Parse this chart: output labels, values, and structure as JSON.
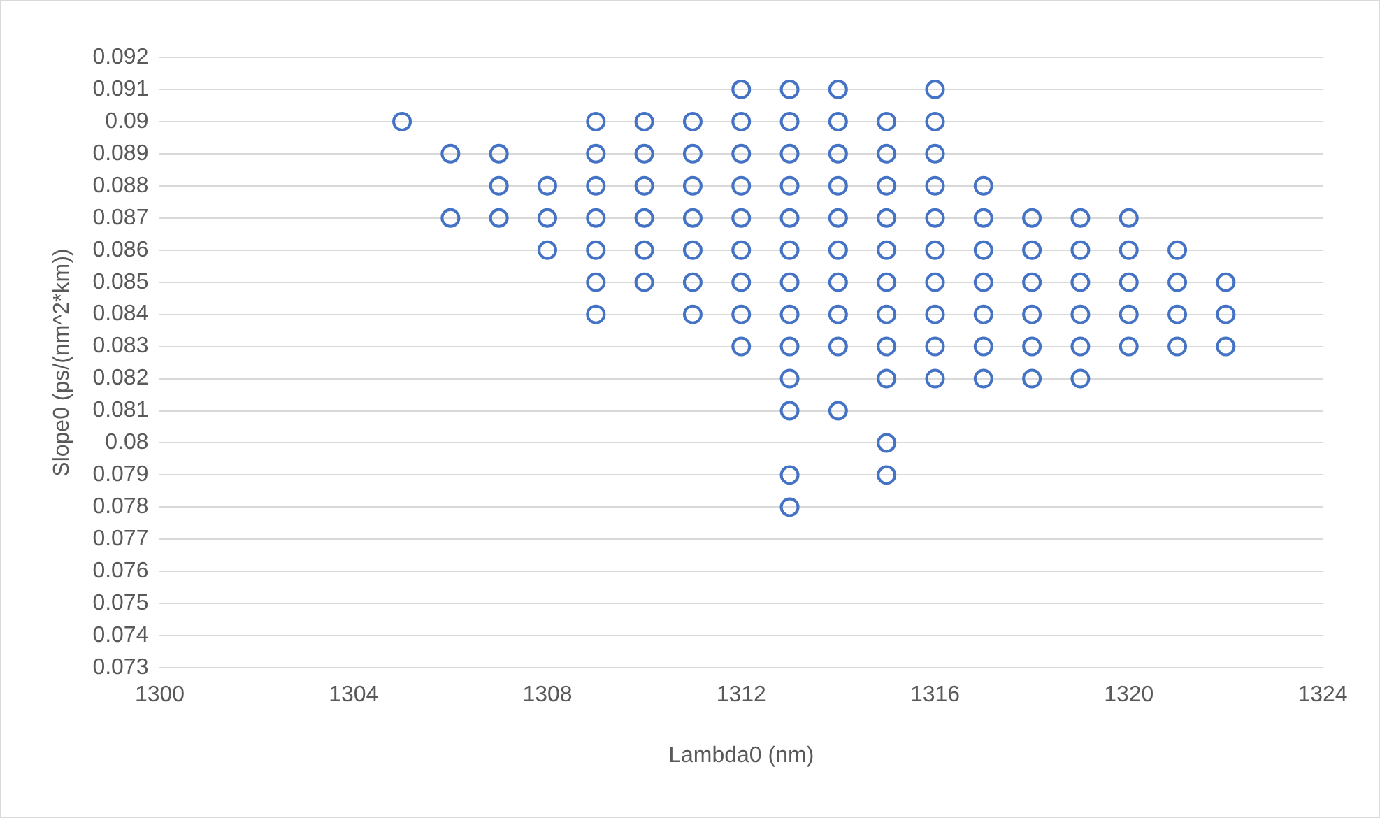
{
  "chart_data": {
    "type": "scatter",
    "xlabel": "Lambda0 (nm)",
    "ylabel": "Slope0 (ps/(nm^2*km))",
    "xlim": [
      1300,
      1324
    ],
    "xticks": [
      1300,
      1304,
      1308,
      1312,
      1316,
      1320,
      1324
    ],
    "ylim": [
      0.073,
      0.092
    ],
    "yticks": [
      0.073,
      0.074,
      0.075,
      0.076,
      0.077,
      0.078,
      0.079,
      0.08,
      0.081,
      0.082,
      0.083,
      0.084,
      0.085,
      0.086,
      0.087,
      0.088,
      0.089,
      0.09,
      0.091,
      0.092
    ],
    "grid": "y",
    "legend": false,
    "marker": "circle",
    "series": [
      {
        "color": "#4472c4",
        "x": [
          1312,
          1313,
          1314,
          1316,
          1305,
          1309,
          1310,
          1311,
          1312,
          1313,
          1314,
          1315,
          1316,
          1306,
          1307,
          1309,
          1310,
          1311,
          1312,
          1313,
          1314,
          1315,
          1316,
          1307,
          1308,
          1309,
          1310,
          1311,
          1312,
          1313,
          1314,
          1315,
          1316,
          1317,
          1306,
          1307,
          1308,
          1309,
          1310,
          1311,
          1312,
          1313,
          1314,
          1315,
          1316,
          1317,
          1318,
          1319,
          1320,
          1308,
          1309,
          1310,
          1311,
          1312,
          1313,
          1314,
          1315,
          1316,
          1317,
          1318,
          1319,
          1320,
          1321,
          1309,
          1310,
          1311,
          1312,
          1313,
          1314,
          1315,
          1316,
          1317,
          1318,
          1319,
          1320,
          1321,
          1322,
          1309,
          1311,
          1312,
          1313,
          1314,
          1315,
          1316,
          1317,
          1318,
          1319,
          1320,
          1321,
          1322,
          1312,
          1313,
          1314,
          1315,
          1316,
          1317,
          1318,
          1319,
          1320,
          1321,
          1322,
          1313,
          1315,
          1316,
          1317,
          1318,
          1319,
          1313,
          1314,
          1315,
          1313,
          1315,
          1313
        ],
        "values": [
          0.091,
          0.091,
          0.091,
          0.091,
          0.09,
          0.09,
          0.09,
          0.09,
          0.09,
          0.09,
          0.09,
          0.09,
          0.09,
          0.089,
          0.089,
          0.089,
          0.089,
          0.089,
          0.089,
          0.089,
          0.089,
          0.089,
          0.089,
          0.088,
          0.088,
          0.088,
          0.088,
          0.088,
          0.088,
          0.088,
          0.088,
          0.088,
          0.088,
          0.088,
          0.087,
          0.087,
          0.087,
          0.087,
          0.087,
          0.087,
          0.087,
          0.087,
          0.087,
          0.087,
          0.087,
          0.087,
          0.087,
          0.087,
          0.087,
          0.086,
          0.086,
          0.086,
          0.086,
          0.086,
          0.086,
          0.086,
          0.086,
          0.086,
          0.086,
          0.086,
          0.086,
          0.086,
          0.086,
          0.085,
          0.085,
          0.085,
          0.085,
          0.085,
          0.085,
          0.085,
          0.085,
          0.085,
          0.085,
          0.085,
          0.085,
          0.085,
          0.085,
          0.084,
          0.084,
          0.084,
          0.084,
          0.084,
          0.084,
          0.084,
          0.084,
          0.084,
          0.084,
          0.084,
          0.084,
          0.084,
          0.083,
          0.083,
          0.083,
          0.083,
          0.083,
          0.083,
          0.083,
          0.083,
          0.083,
          0.083,
          0.083,
          0.082,
          0.082,
          0.082,
          0.082,
          0.082,
          0.082,
          0.081,
          0.081,
          0.08,
          0.079,
          0.079,
          0.078
        ]
      }
    ]
  }
}
